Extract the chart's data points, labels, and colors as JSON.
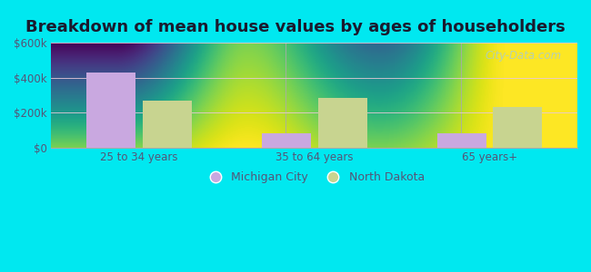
{
  "title": "Breakdown of mean house values by ages of householders",
  "categories": [
    "25 to 34 years",
    "35 to 64 years",
    "65 years+"
  ],
  "michigan_city": [
    430000,
    80000,
    80000
  ],
  "north_dakota": [
    270000,
    285000,
    230000
  ],
  "michigan_city_color": "#c9a8e0",
  "north_dakota_color": "#c8d490",
  "ylim": [
    0,
    600000
  ],
  "yticks": [
    0,
    200000,
    400000,
    600000
  ],
  "ytick_labels": [
    "$0",
    "$200k",
    "$400k",
    "$600k"
  ],
  "legend_michigan": "Michigan City",
  "legend_north_dakota": "North Dakota",
  "bg_outer": "#00e8f0",
  "bar_width": 0.28,
  "title_fontsize": 13,
  "title_color": "#1a1a2e",
  "tick_color": "#555577",
  "watermark": "City-Data.com",
  "watermark_color": "#aacccc"
}
